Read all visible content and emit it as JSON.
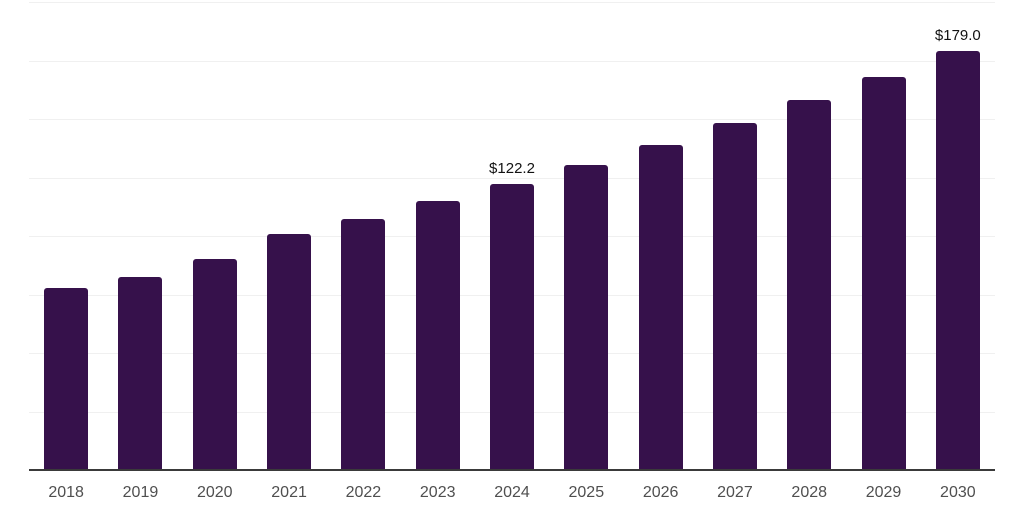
{
  "chart_data": {
    "type": "bar",
    "title": "",
    "xlabel": "",
    "ylabel": "",
    "categories": [
      "2018",
      "2019",
      "2020",
      "2021",
      "2022",
      "2023",
      "2024",
      "2025",
      "2026",
      "2027",
      "2028",
      "2029",
      "2030"
    ],
    "values": [
      77.6,
      82.6,
      90.3,
      101.0,
      107.4,
      114.8,
      122.2,
      130.3,
      138.9,
      148.1,
      158.0,
      167.9,
      179.0
    ],
    "labeled_points": [
      {
        "category": "2024",
        "label": "$122.2"
      },
      {
        "category": "2030",
        "label": "$179.0"
      }
    ],
    "value_prefix": "$",
    "ylim": [
      0,
      200
    ],
    "gridline_interval": 25,
    "grid": true,
    "legend": "none",
    "bar_color": "#36114B",
    "gridline_color": "#F0F0F0",
    "axis_line_color": "#3A3A3A",
    "value_label_color": "#121212",
    "tick_label_color": "#4F4F4F",
    "background_color": "#FFFFFF"
  }
}
